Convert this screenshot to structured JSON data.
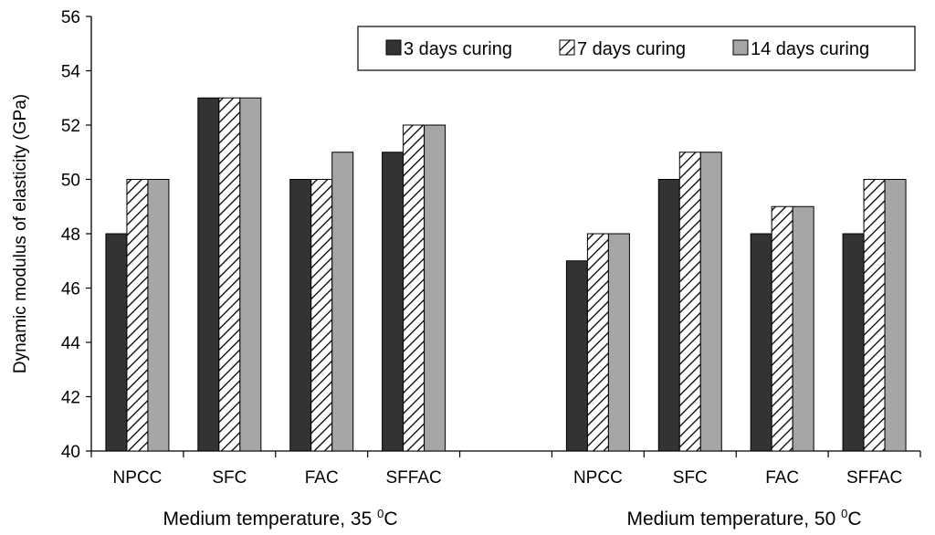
{
  "chart_data": {
    "type": "bar",
    "ylabel": "Dynamic modulus of elasticity (GPa)",
    "ylim": [
      40,
      56
    ],
    "yticks": [
      40,
      42,
      44,
      46,
      48,
      50,
      52,
      54,
      56
    ],
    "grid": false,
    "legend_position": "top-right",
    "groups": [
      {
        "label": "Medium temperature, 35 ",
        "label_sup": "0",
        "label_unit": "C",
        "categories": [
          "NPCC",
          "SFC",
          "FAC",
          "SFFAC"
        ]
      },
      {
        "label": "Medium temperature, 50 ",
        "label_sup": "0",
        "label_unit": "C",
        "categories": [
          "NPCC",
          "SFC",
          "FAC",
          "SFFAC"
        ]
      }
    ],
    "series": [
      {
        "name": "3 days curing",
        "color": "#333333",
        "pattern": "solid",
        "values": [
          48,
          53,
          50,
          51,
          47,
          50,
          48,
          48
        ]
      },
      {
        "name": "7 days curing",
        "color": "#ffffff",
        "pattern": "hatched",
        "values": [
          50,
          53,
          50,
          52,
          48,
          51,
          49,
          50
        ]
      },
      {
        "name": "14 days curing",
        "color": "#a6a6a6",
        "pattern": "solid",
        "values": [
          50,
          53,
          51,
          52,
          48,
          51,
          49,
          50
        ]
      }
    ]
  }
}
